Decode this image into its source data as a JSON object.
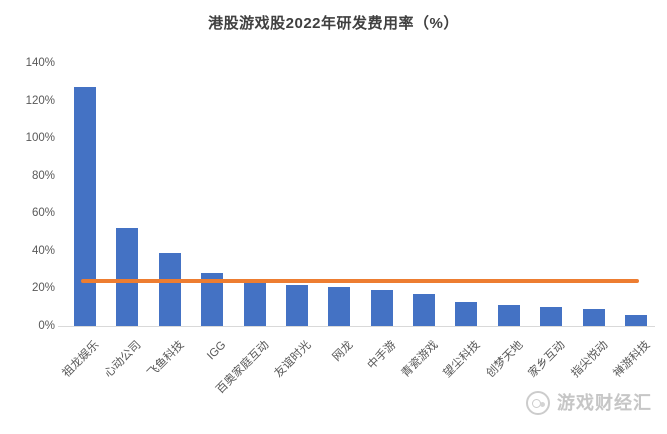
{
  "chart_data": {
    "type": "bar",
    "title": "港股游戏股2022年研发费用率（%）",
    "categories": [
      "祖龙娱乐",
      "心动公司",
      "飞鱼科技",
      "IGG",
      "百奥家庭互动",
      "友谊时光",
      "网龙",
      "中手游",
      "青瓷游戏",
      "望尘科技",
      "创梦天地",
      "家乡互动",
      "指尖悦动",
      "禅游科技"
    ],
    "values": [
      127,
      52,
      39,
      28,
      23,
      22,
      21,
      19,
      17,
      13,
      11,
      10,
      9,
      6
    ],
    "xlabel": "",
    "ylabel": "",
    "ylim": [
      0,
      140
    ],
    "ytick_step": 20,
    "ytick_labels": [
      "0%",
      "20%",
      "40%",
      "60%",
      "80%",
      "100%",
      "120%",
      "140%"
    ],
    "grid": false,
    "legend": "none",
    "bar_color": "#4472c4",
    "axis_label_color": "#595959",
    "reference_line": {
      "value": 24,
      "color": "#ed7d31",
      "style": "solid"
    }
  },
  "watermark": {
    "label": "游戏财经汇",
    "icon": "circle-logo",
    "color": "#c6c6c6"
  }
}
